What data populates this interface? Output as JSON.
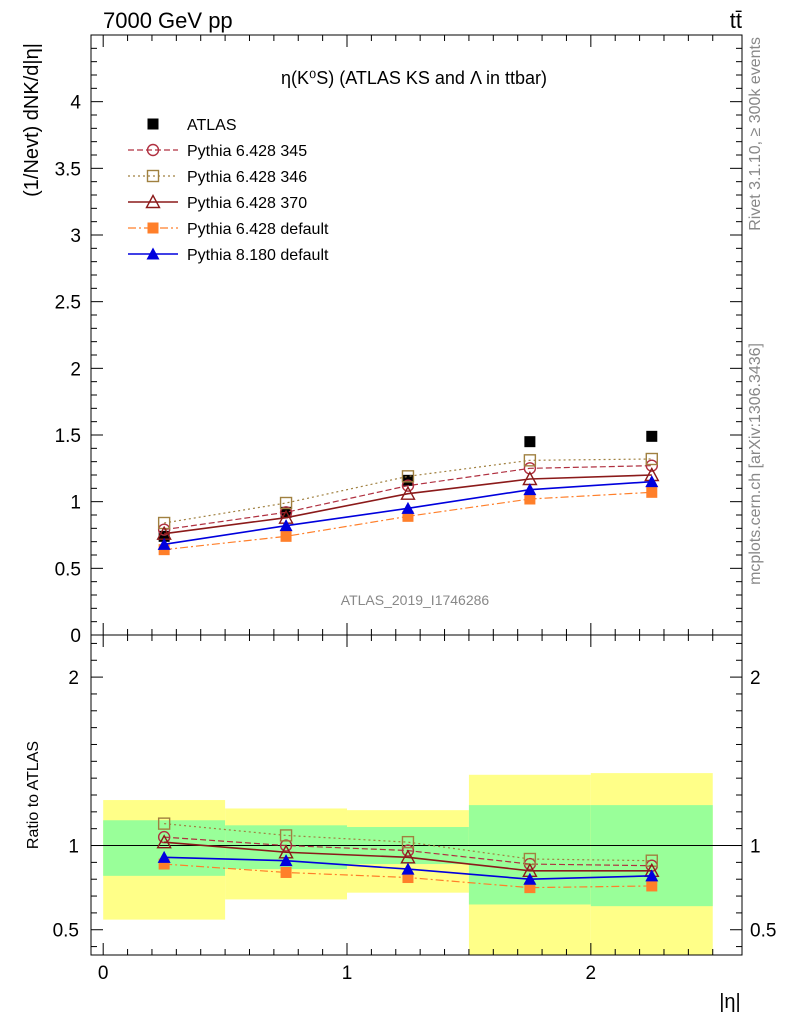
{
  "header": {
    "left": "7000 GeV pp",
    "right": "tt̄"
  },
  "side_labels": {
    "rivet": "Rivet 3.1.10, ≥ 300k events",
    "mcplots": "mcplots.cern.ch [arXiv:1306.3436]"
  },
  "watermark": "ATLAS_2019_I1746286",
  "chart_data": [
    {
      "type": "line",
      "title": "η(K⁰S) (ATLAS KS and Λ in ttbar)",
      "ylabel": "(1/Nevt) dNK/d|η|",
      "xlim": [
        -0.05,
        2.62
      ],
      "ylim": [
        0,
        4.5
      ],
      "yticks": [
        "0",
        "0.5",
        "1",
        "1.5",
        "2",
        "2.5",
        "3",
        "3.5",
        "4"
      ],
      "legend_position": "top-left",
      "x": [
        0.25,
        0.75,
        1.25,
        1.75,
        2.25
      ],
      "series": [
        {
          "name": "ATLAS",
          "color": "#000000",
          "values": [
            0.74,
            0.92,
            1.16,
            1.45,
            1.49
          ]
        },
        {
          "name": "Pythia 6.428 345",
          "color": "#b03040",
          "values": [
            0.79,
            0.92,
            1.12,
            1.25,
            1.27
          ]
        },
        {
          "name": "Pythia 6.428 346",
          "color": "#a08040",
          "values": [
            0.84,
            0.99,
            1.19,
            1.31,
            1.32
          ]
        },
        {
          "name": "Pythia 6.428 370",
          "color": "#8b1a1a",
          "values": [
            0.76,
            0.88,
            1.06,
            1.17,
            1.2
          ]
        },
        {
          "name": "Pythia 6.428 default",
          "color": "#ff7f2a",
          "values": [
            0.64,
            0.74,
            0.89,
            1.02,
            1.07
          ]
        },
        {
          "name": "Pythia 8.180 default",
          "color": "#0000dd",
          "values": [
            0.68,
            0.82,
            0.95,
            1.09,
            1.15
          ]
        }
      ]
    },
    {
      "type": "line",
      "ylabel": "Ratio to ATLAS",
      "xlabel": "|η|",
      "xlim": [
        -0.05,
        2.62
      ],
      "ylim": [
        0.35,
        2.25
      ],
      "yticks": [
        "0.5",
        "1",
        "2"
      ],
      "xticks": [
        "0",
        "1",
        "2"
      ],
      "bands": [
        {
          "x0": 0.0,
          "x1": 0.5,
          "green": [
            0.82,
            1.15
          ],
          "yellow": [
            0.56,
            1.27
          ]
        },
        {
          "x0": 0.5,
          "x1": 1.0,
          "green": [
            0.86,
            1.12
          ],
          "yellow": [
            0.68,
            1.22
          ]
        },
        {
          "x0": 1.0,
          "x1": 1.5,
          "green": [
            0.89,
            1.11
          ],
          "yellow": [
            0.72,
            1.21
          ]
        },
        {
          "x0": 1.5,
          "x1": 2.0,
          "green": [
            0.65,
            1.24
          ],
          "yellow": [
            0.35,
            1.42
          ]
        },
        {
          "x0": 2.0,
          "x1": 2.5,
          "green": [
            0.64,
            1.24
          ],
          "yellow": [
            0.35,
            1.43
          ]
        }
      ],
      "x": [
        0.25,
        0.75,
        1.25,
        1.75,
        2.25
      ],
      "series": [
        {
          "name": "Pythia 6.428 345",
          "values": [
            1.05,
            1.0,
            0.97,
            0.89,
            0.88
          ]
        },
        {
          "name": "Pythia 6.428 346",
          "values": [
            1.13,
            1.06,
            1.02,
            0.92,
            0.91
          ]
        },
        {
          "name": "Pythia 6.428 370",
          "values": [
            1.02,
            0.96,
            0.93,
            0.85,
            0.85
          ]
        },
        {
          "name": "Pythia 6.428 default",
          "values": [
            0.89,
            0.84,
            0.81,
            0.75,
            0.76
          ]
        },
        {
          "name": "Pythia 8.180 default",
          "values": [
            0.93,
            0.91,
            0.86,
            0.8,
            0.82
          ]
        }
      ]
    }
  ]
}
